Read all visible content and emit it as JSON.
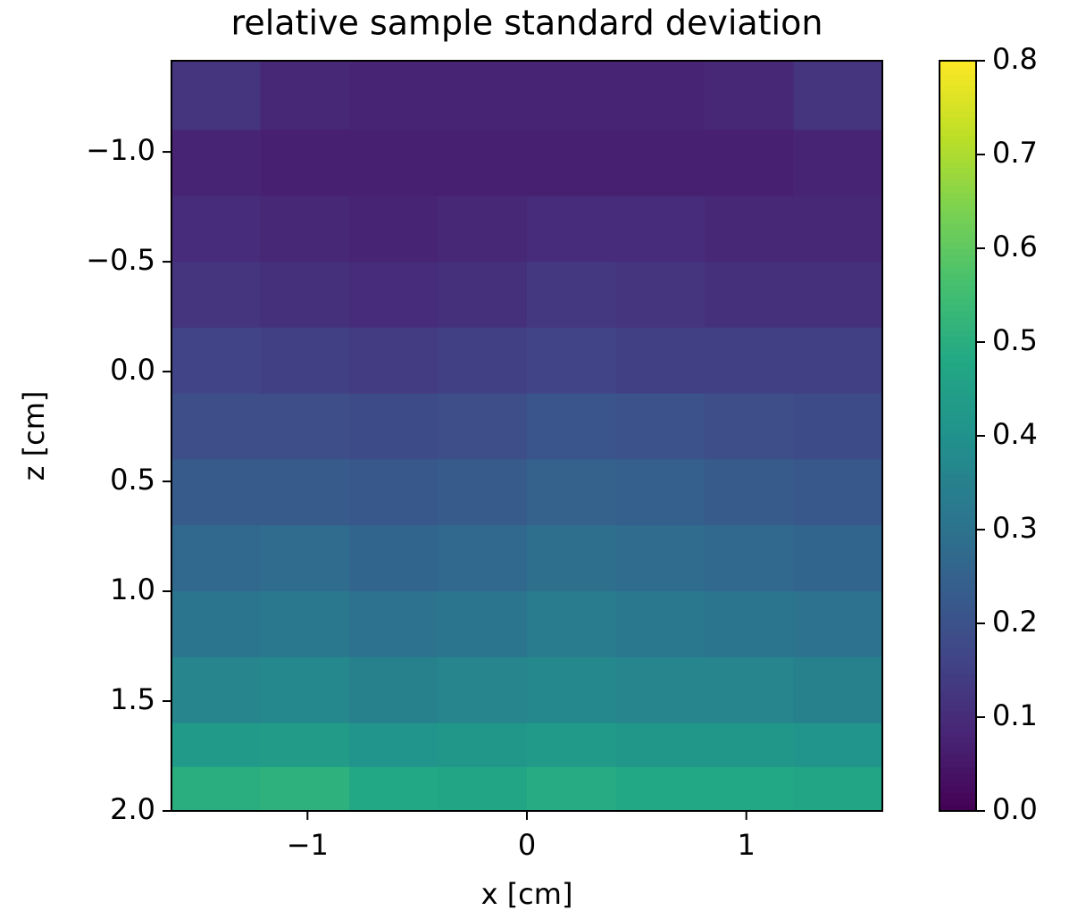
{
  "chart_data": {
    "type": "heatmap",
    "title": "relative sample standard deviation",
    "xlabel": "x [cm]",
    "ylabel": "z [cm]",
    "xlim": [
      -1.62,
      1.62
    ],
    "ylim": [
      2.0,
      -1.415
    ],
    "xticks": [
      {
        "value": -1,
        "label": "−1"
      },
      0,
      1
    ],
    "yticks": [
      {
        "value": -1.0,
        "label": "−1.0"
      },
      {
        "value": -0.5,
        "label": "−0.5"
      },
      {
        "value": 0,
        "label": "0.0"
      },
      0.5,
      {
        "value": 1.0,
        "label": "1.0"
      },
      1.5,
      {
        "value": 2.0,
        "label": "2.0"
      }
    ],
    "colormap": "viridis",
    "clim": [
      0,
      0.8
    ],
    "cticks": [
      {
        "value": 0,
        "label": "0.0"
      },
      0.1,
      0.2,
      0.3,
      0.4,
      0.5,
      0.6,
      0.7,
      0.8
    ],
    "xbins": [
      -1.62,
      -1.215,
      -0.81,
      -0.405,
      0,
      0.405,
      0.81,
      1.215,
      1.62
    ],
    "zbins": [
      -1.415,
      -1.1,
      -0.8,
      -0.5,
      -0.2,
      0.1,
      0.4,
      0.7,
      1.0,
      1.3,
      1.6,
      1.8,
      2.0
    ],
    "values": [
      [
        0.12,
        0.09,
        0.08,
        0.08,
        0.08,
        0.08,
        0.09,
        0.12
      ],
      [
        0.08,
        0.07,
        0.07,
        0.07,
        0.07,
        0.07,
        0.07,
        0.08
      ],
      [
        0.1,
        0.09,
        0.08,
        0.09,
        0.1,
        0.1,
        0.09,
        0.09
      ],
      [
        0.12,
        0.11,
        0.1,
        0.11,
        0.13,
        0.12,
        0.11,
        0.11
      ],
      [
        0.16,
        0.15,
        0.14,
        0.15,
        0.16,
        0.15,
        0.15,
        0.15
      ],
      [
        0.19,
        0.19,
        0.18,
        0.19,
        0.21,
        0.2,
        0.19,
        0.18
      ],
      [
        0.23,
        0.23,
        0.22,
        0.23,
        0.25,
        0.24,
        0.23,
        0.22
      ],
      [
        0.27,
        0.28,
        0.26,
        0.27,
        0.29,
        0.28,
        0.27,
        0.26
      ],
      [
        0.31,
        0.32,
        0.3,
        0.31,
        0.33,
        0.32,
        0.31,
        0.3
      ],
      [
        0.36,
        0.37,
        0.35,
        0.36,
        0.37,
        0.36,
        0.36,
        0.35
      ],
      [
        0.43,
        0.44,
        0.41,
        0.42,
        0.43,
        0.42,
        0.42,
        0.41
      ],
      [
        0.5,
        0.51,
        0.48,
        0.47,
        0.49,
        0.48,
        0.48,
        0.47
      ]
    ]
  }
}
